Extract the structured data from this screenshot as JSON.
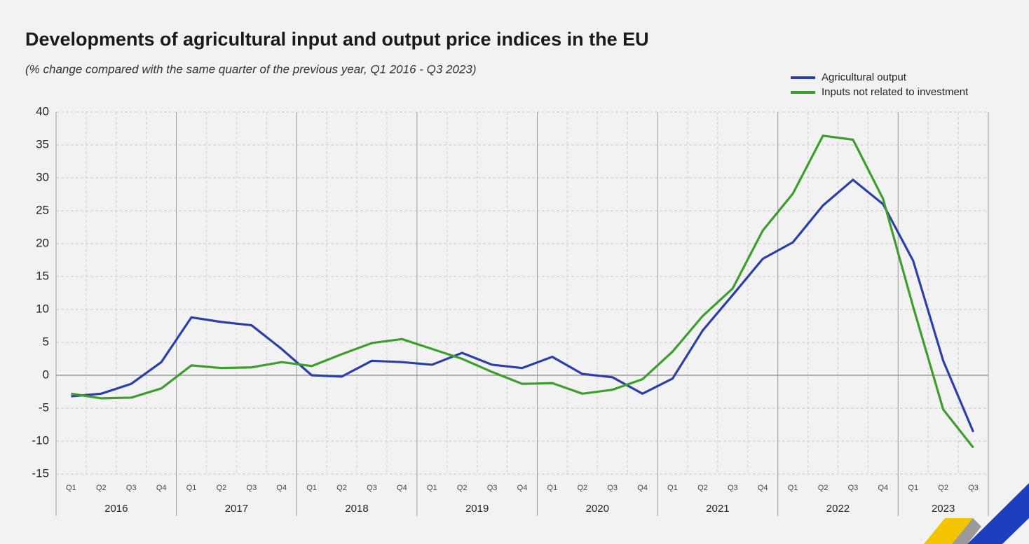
{
  "chart_data": {
    "type": "line",
    "title": "Developments of agricultural input and output price indices in the EU",
    "subtitle": "(% change compared with the same quarter of the previous year,  Q1 2016 - Q3 2023)",
    "categories": [
      "Q1",
      "Q2",
      "Q3",
      "Q4",
      "Q1",
      "Q2",
      "Q3",
      "Q4",
      "Q1",
      "Q2",
      "Q3",
      "Q4",
      "Q1",
      "Q2",
      "Q3",
      "Q4",
      "Q1",
      "Q2",
      "Q3",
      "Q4",
      "Q1",
      "Q2",
      "Q3",
      "Q4",
      "Q1",
      "Q2",
      "Q3",
      "Q4",
      "Q1",
      "Q2",
      "Q3"
    ],
    "years": [
      "2016",
      "2017",
      "2018",
      "2019",
      "2020",
      "2021",
      "2022",
      "2023"
    ],
    "series": [
      {
        "name": "Agricultural output",
        "color": "#2a3fa8",
        "values": [
          -3.2,
          -2.8,
          -1.3,
          2.0,
          8.8,
          8.1,
          7.6,
          4.0,
          0.0,
          -0.2,
          2.2,
          2.0,
          1.6,
          3.4,
          1.6,
          1.1,
          2.8,
          0.2,
          -0.3,
          -2.8,
          -0.5,
          6.8,
          12.2,
          17.7,
          20.2,
          25.8,
          29.7,
          26.0,
          17.4,
          2.2,
          -8.6
        ]
      },
      {
        "name": "Inputs not related to investment",
        "color": "#3d9e2e",
        "values": [
          -2.8,
          -3.5,
          -3.4,
          -2.0,
          1.5,
          1.1,
          1.2,
          2.0,
          1.4,
          3.2,
          4.9,
          5.5,
          4.0,
          2.5,
          0.5,
          -1.3,
          -1.2,
          -2.8,
          -2.2,
          -0.6,
          3.6,
          9.0,
          13.2,
          22.0,
          27.6,
          36.4,
          35.8,
          26.8,
          10.4,
          -5.2,
          -11.0
        ]
      }
    ],
    "ylim": [
      -15,
      40
    ],
    "yticks": [
      -15,
      -10,
      -5,
      0,
      5,
      10,
      15,
      20,
      25,
      30,
      35,
      40
    ],
    "grid": true,
    "legend": "top-right"
  }
}
